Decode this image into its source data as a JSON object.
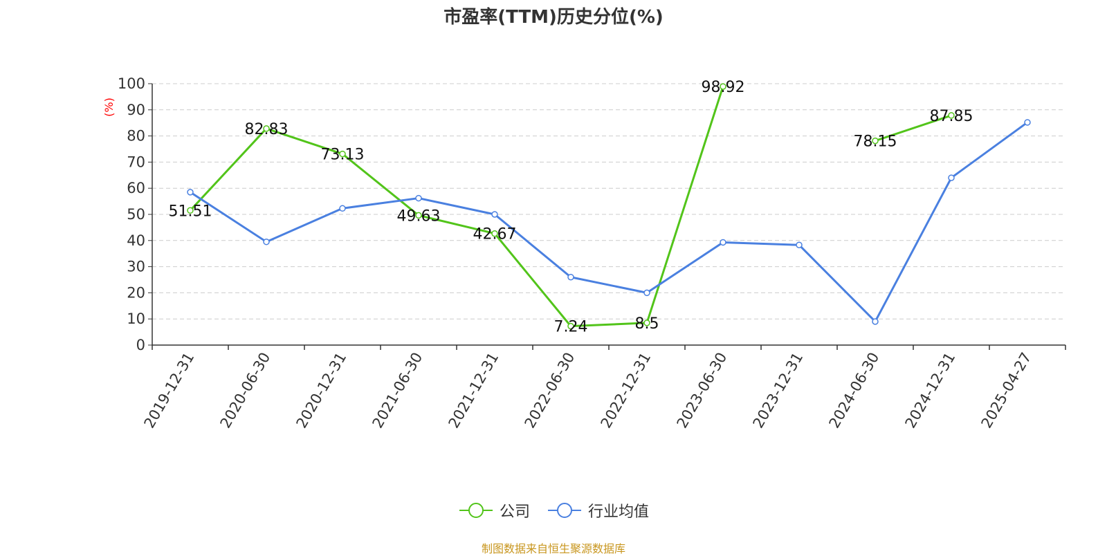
{
  "chart_data": {
    "type": "line",
    "title": "市盈率(TTM)历史分位(%)",
    "ylabel": "(%)",
    "ylim": [
      0,
      100
    ],
    "yticks": [
      0,
      10,
      20,
      30,
      40,
      50,
      60,
      70,
      80,
      90,
      100
    ],
    "x": [
      "2019-12-31",
      "2020-06-30",
      "2020-12-31",
      "2021-06-30",
      "2021-12-31",
      "2022-06-30",
      "2022-12-31",
      "2023-06-30",
      "2023-12-31",
      "2024-06-30",
      "2024-12-31",
      "2025-04-27"
    ],
    "series": [
      {
        "name": "公司",
        "color": "#52c41a",
        "show_labels": true,
        "values": [
          51.51,
          82.83,
          73.13,
          49.63,
          42.67,
          7.24,
          8.5,
          98.92,
          null,
          78.15,
          87.85,
          null
        ]
      },
      {
        "name": "行业均值",
        "color": "#4a80e0",
        "show_labels": false,
        "values": [
          58.5,
          39.5,
          52.3,
          56.2,
          50.0,
          26.0,
          20.0,
          39.3,
          38.3,
          9.0,
          64.0,
          85.2
        ]
      }
    ],
    "grid": true,
    "legend_position": "bottom"
  },
  "source_text": "制图数据来自恒生聚源数据库",
  "colors": {
    "axis": "#333333",
    "grid": "#cccccc",
    "ylabel": "#ff0000",
    "source": "#c8961e"
  }
}
